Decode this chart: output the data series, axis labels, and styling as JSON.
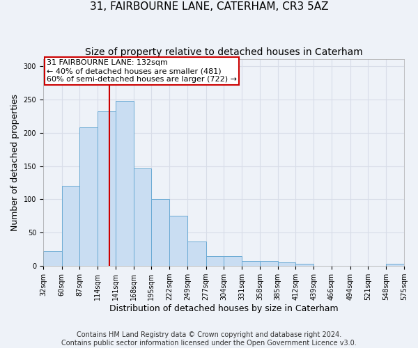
{
  "title": "31, FAIRBOURNE LANE, CATERHAM, CR3 5AZ",
  "subtitle": "Size of property relative to detached houses in Caterham",
  "xlabel": "Distribution of detached houses by size in Caterham",
  "ylabel": "Number of detached properties",
  "bar_color": "#c9ddf2",
  "bar_edge_color": "#6aaad4",
  "bin_labels": [
    "32sqm",
    "60sqm",
    "87sqm",
    "114sqm",
    "141sqm",
    "168sqm",
    "195sqm",
    "222sqm",
    "249sqm",
    "277sqm",
    "304sqm",
    "331sqm",
    "358sqm",
    "385sqm",
    "412sqm",
    "439sqm",
    "466sqm",
    "494sqm",
    "521sqm",
    "548sqm",
    "575sqm"
  ],
  "bar_values": [
    22,
    120,
    208,
    232,
    248,
    146,
    101,
    75,
    37,
    15,
    15,
    8,
    8,
    5,
    3,
    0,
    0,
    0,
    0,
    3
  ],
  "bin_edges": [
    32,
    60,
    87,
    114,
    141,
    168,
    195,
    222,
    249,
    277,
    304,
    331,
    358,
    385,
    412,
    439,
    466,
    494,
    521,
    548,
    575
  ],
  "property_size": 132,
  "red_line_color": "#cc0000",
  "annotation_line1": "31 FAIRBOURNE LANE: 132sqm",
  "annotation_line2": "← 40% of detached houses are smaller (481)",
  "annotation_line3": "60% of semi-detached houses are larger (722) →",
  "annotation_box_color": "#ffffff",
  "annotation_box_edge": "#cc0000",
  "ylim": [
    0,
    310
  ],
  "yticks": [
    0,
    50,
    100,
    150,
    200,
    250,
    300
  ],
  "grid_color": "#d8dde8",
  "background_color": "#eef2f8",
  "footer_text": "Contains HM Land Registry data © Crown copyright and database right 2024.\nContains public sector information licensed under the Open Government Licence v3.0.",
  "title_fontsize": 11,
  "subtitle_fontsize": 10,
  "xlabel_fontsize": 9,
  "ylabel_fontsize": 9,
  "tick_fontsize": 7,
  "annotation_fontsize": 8,
  "footer_fontsize": 7
}
